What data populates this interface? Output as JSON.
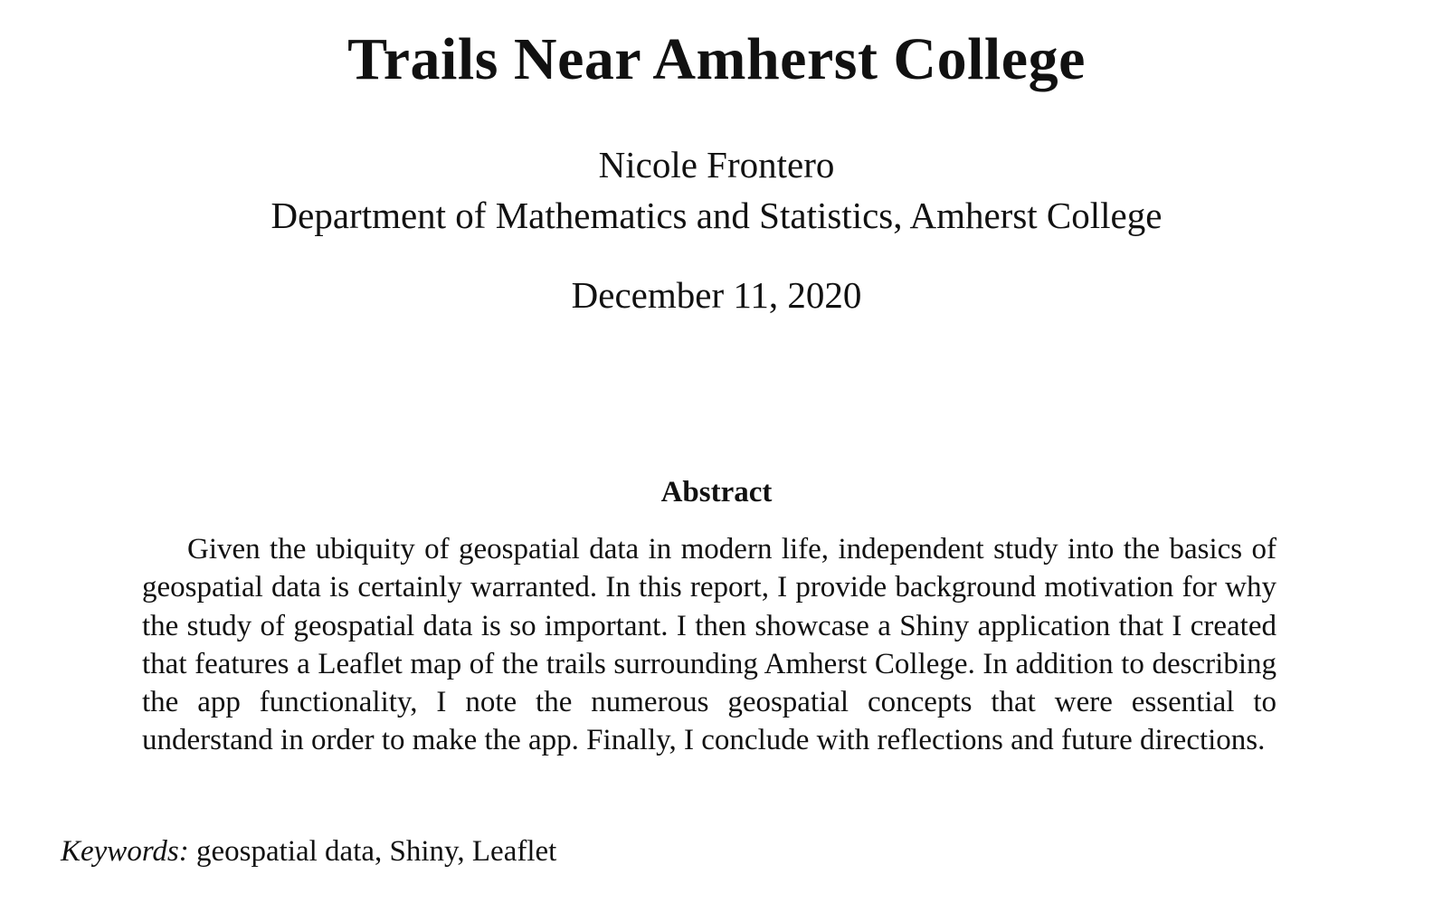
{
  "header": {
    "title": "Trails Near Amherst College",
    "author": "Nicole Frontero",
    "affiliation": "Department of Mathematics and Statistics, Amherst College",
    "date": "December 11, 2020"
  },
  "abstract": {
    "heading": "Abstract",
    "text": "Given the ubiquity of geospatial data in modern life, independent study into the basics of geospatial data is certainly warranted. In this report, I provide background motivation for why the study of geospatial data is so important. I then showcase a Shiny application that I created that features a Leaflet map of the trails surrounding Amherst College. In addition to describing the app functionality, I note the numerous geospatial concepts that were essential to understand in order to make the app. Finally, I conclude with reflections and future directions."
  },
  "keywords": {
    "label": "Keywords:",
    "value": "geospatial data, Shiny, Leaflet"
  }
}
